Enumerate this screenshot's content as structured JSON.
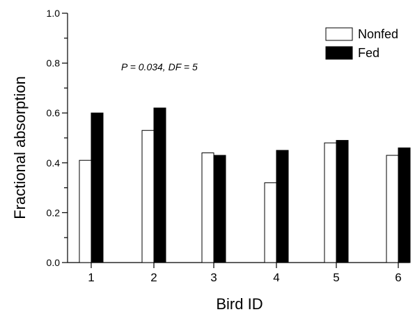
{
  "chart_data": {
    "type": "bar",
    "categories": [
      "1",
      "2",
      "3",
      "4",
      "5",
      "6"
    ],
    "series": [
      {
        "name": "Nonfed",
        "values": [
          0.41,
          0.53,
          0.44,
          0.32,
          0.48,
          0.43
        ],
        "color": "#ffffff"
      },
      {
        "name": "Fed",
        "values": [
          0.6,
          0.62,
          0.43,
          0.45,
          0.49,
          0.46
        ],
        "color": "#000000"
      }
    ],
    "title": "",
    "xlabel": "Bird ID",
    "ylabel": "Fractional absorption",
    "ylim": [
      0,
      1.0
    ],
    "yticks": [
      "0.0",
      "0.2",
      "0.4",
      "0.6",
      "0.8",
      "1.0"
    ],
    "annotation": "P = 0.034, DF = 5",
    "legend_position": "top-right",
    "grid": false
  }
}
